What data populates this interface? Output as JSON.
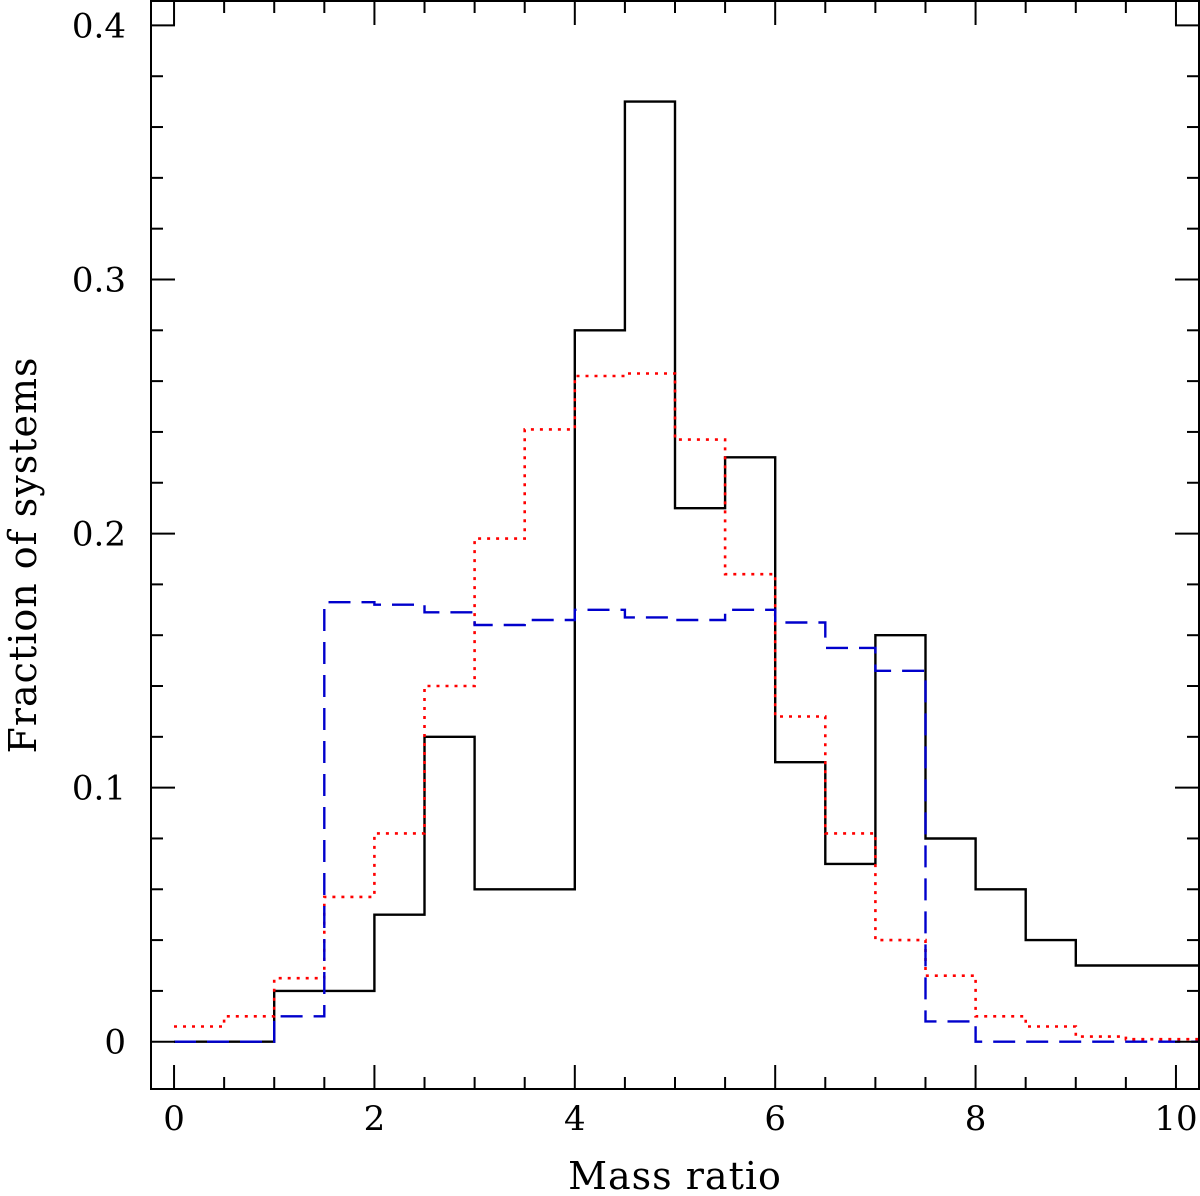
{
  "chart_data": {
    "type": "line",
    "title": "",
    "xlabel": "Mass ratio",
    "ylabel": "Fraction of systems",
    "xlim": [
      -0.24,
      10.24
    ],
    "ylim": [
      -0.019,
      0.41
    ],
    "x_ticks": [
      {
        "value": 0,
        "label": "0"
      },
      {
        "value": 2,
        "label": "2"
      },
      {
        "value": 4,
        "label": "4"
      },
      {
        "value": 6,
        "label": "6"
      },
      {
        "value": 8,
        "label": "8"
      },
      {
        "value": 10,
        "label": "10"
      }
    ],
    "y_ticks": [
      {
        "value": 0,
        "label": "0"
      },
      {
        "value": 0.1,
        "label": "0.1"
      },
      {
        "value": 0.2,
        "label": "0.2"
      },
      {
        "value": 0.3,
        "label": "0.3"
      },
      {
        "value": 0.4,
        "label": "0.4"
      }
    ],
    "x_minor_step": 0.5,
    "y_minor_step": 0.02,
    "grid": false,
    "legend": "none",
    "series": [
      {
        "color": "#000000",
        "style": "solid",
        "x": [
          0,
          1,
          1.5,
          2,
          2.5,
          3,
          3.5,
          4,
          4.5,
          5,
          5.5,
          6,
          6.5,
          7,
          7.5,
          8,
          8.5,
          9,
          9.5,
          10
        ],
        "values": [
          0,
          0.02,
          0.02,
          0.05,
          0.12,
          0.06,
          0.06,
          0.28,
          0.37,
          0.21,
          0.23,
          0.11,
          0.07,
          0.16,
          0.08,
          0.06,
          0.04,
          0.03,
          0.03,
          0.03
        ]
      },
      {
        "color": "#ff0000",
        "style": "dotted",
        "x": [
          0,
          0.5,
          1,
          1.5,
          2,
          2.5,
          3,
          3.5,
          4,
          4.5,
          5,
          5.5,
          6,
          6.5,
          7,
          7.5,
          8,
          8.5,
          9,
          9.5,
          10
        ],
        "values": [
          0.006,
          0.01,
          0.025,
          0.057,
          0.082,
          0.14,
          0.198,
          0.241,
          0.262,
          0.263,
          0.237,
          0.184,
          0.128,
          0.082,
          0.04,
          0.026,
          0.01,
          0.006,
          0.002,
          0.001,
          0.001
        ]
      },
      {
        "color": "#0000cc",
        "style": "dashed",
        "x": [
          0,
          1,
          1.5,
          2,
          2.5,
          3,
          3.5,
          4,
          4.5,
          5,
          5.5,
          6,
          6.5,
          7,
          7.5,
          8,
          8.5,
          9,
          9.5,
          10
        ],
        "values": [
          0,
          0.01,
          0.173,
          0.172,
          0.169,
          0.164,
          0.166,
          0.17,
          0.167,
          0.166,
          0.17,
          0.165,
          0.155,
          0.146,
          0.008,
          0,
          0,
          0,
          0,
          0
        ]
      }
    ]
  }
}
